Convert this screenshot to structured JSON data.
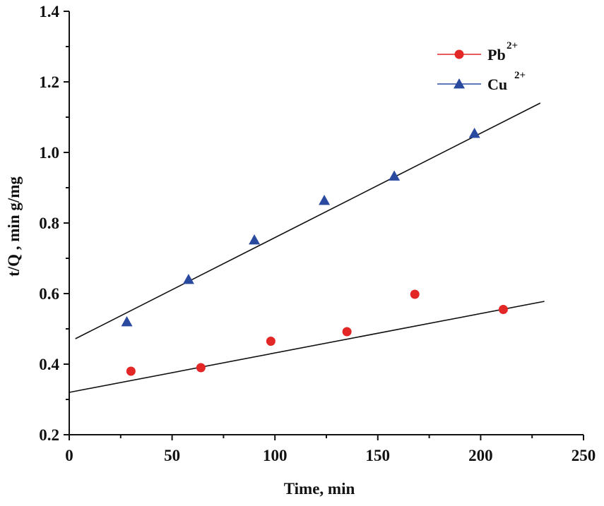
{
  "chart_data": {
    "type": "scatter",
    "title": "",
    "xlabel": "Time, min",
    "ylabel": "t/Q , min g/mg",
    "xlim": [
      0,
      250
    ],
    "ylim": [
      0.2,
      1.4
    ],
    "xticks": [
      "0",
      "50",
      "100",
      "150",
      "200",
      "250"
    ],
    "yticks": [
      "0.2",
      "0.4",
      "0.6",
      "0.8",
      "1.0",
      "1.2",
      "1.4"
    ],
    "grid": false,
    "legend_position": "top-right",
    "series": [
      {
        "name": "Pb",
        "superscript": "2+",
        "marker": "circle",
        "color": "#e32626",
        "x": [
          30,
          64,
          98,
          135,
          168,
          211
        ],
        "y": [
          0.38,
          0.39,
          0.465,
          0.492,
          0.598,
          0.555
        ],
        "fit": {
          "x": [
            0,
            231
          ],
          "y": [
            0.32,
            0.578
          ]
        }
      },
      {
        "name": "Cu",
        "superscript": "2+",
        "marker": "triangle",
        "color": "#2a4aa0",
        "x": [
          28,
          58,
          90,
          124,
          158,
          197
        ],
        "y": [
          0.52,
          0.64,
          0.752,
          0.864,
          0.933,
          1.054
        ],
        "fit": {
          "x": [
            3,
            229
          ],
          "y": [
            0.472,
            1.14
          ]
        }
      }
    ]
  }
}
